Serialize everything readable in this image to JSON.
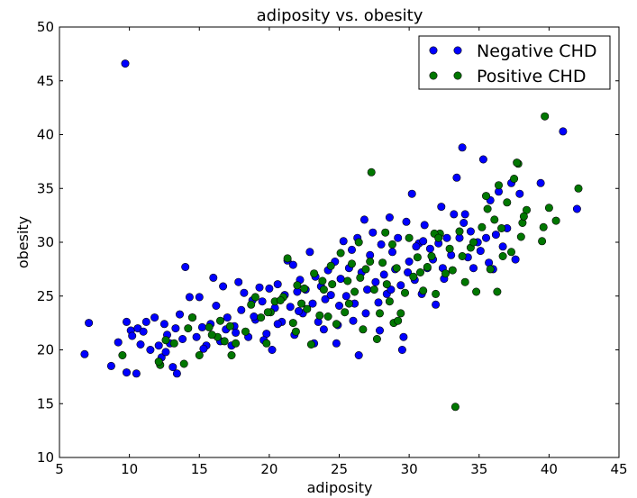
{
  "chart_data": {
    "type": "scatter",
    "title": "adiposity vs. obesity",
    "xlabel": "adiposity",
    "ylabel": "obesity",
    "xlim": [
      5,
      45
    ],
    "ylim": [
      10,
      50
    ],
    "xticks": [
      5,
      10,
      15,
      20,
      25,
      30,
      35,
      40,
      45
    ],
    "yticks": [
      10,
      15,
      20,
      25,
      30,
      35,
      40,
      45,
      50
    ],
    "grid": false,
    "legend_position": "top-right",
    "series": [
      {
        "name": "Negative CHD",
        "color": "#0000ff",
        "points": [
          [
            6.8,
            19.6
          ],
          [
            7.1,
            22.5
          ],
          [
            8.7,
            18.5
          ],
          [
            9.2,
            20.7
          ],
          [
            9.7,
            46.6
          ],
          [
            9.8,
            22.6
          ],
          [
            9.8,
            17.9
          ],
          [
            10.1,
            21.8
          ],
          [
            10.2,
            21.3
          ],
          [
            10.5,
            17.8
          ],
          [
            10.6,
            22.0
          ],
          [
            10.8,
            20.5
          ],
          [
            11.0,
            21.7
          ],
          [
            11.2,
            22.6
          ],
          [
            11.5,
            20.0
          ],
          [
            11.8,
            23.0
          ],
          [
            12.1,
            20.4
          ],
          [
            12.3,
            19.3
          ],
          [
            12.5,
            22.4
          ],
          [
            12.7,
            21.4
          ],
          [
            12.9,
            20.6
          ],
          [
            13.1,
            18.4
          ],
          [
            13.3,
            22.0
          ],
          [
            13.4,
            17.8
          ],
          [
            13.6,
            23.3
          ],
          [
            13.8,
            21.0
          ],
          [
            14.0,
            27.7
          ],
          [
            14.3,
            24.9
          ],
          [
            14.5,
            23.0
          ],
          [
            14.8,
            21.2
          ],
          [
            15.0,
            24.9
          ],
          [
            15.2,
            22.1
          ],
          [
            15.5,
            20.4
          ],
          [
            15.8,
            22.4
          ],
          [
            16.0,
            26.7
          ],
          [
            16.2,
            24.1
          ],
          [
            16.5,
            20.8
          ],
          [
            16.7,
            25.9
          ],
          [
            17.0,
            23.0
          ],
          [
            17.3,
            20.4
          ],
          [
            17.5,
            22.2
          ],
          [
            17.8,
            26.3
          ],
          [
            18.0,
            23.7
          ],
          [
            18.2,
            25.3
          ],
          [
            18.5,
            21.2
          ],
          [
            18.8,
            24.6
          ],
          [
            19.0,
            22.8
          ],
          [
            19.3,
            25.8
          ],
          [
            19.5,
            24.5
          ],
          [
            19.8,
            21.5
          ],
          [
            20.0,
            25.7
          ],
          [
            20.2,
            20.0
          ],
          [
            20.4,
            23.9
          ],
          [
            20.6,
            26.1
          ],
          [
            20.9,
            22.6
          ],
          [
            21.1,
            25.1
          ],
          [
            21.3,
            28.3
          ],
          [
            21.5,
            24.0
          ],
          [
            21.7,
            27.9
          ],
          [
            22.0,
            25.4
          ],
          [
            22.2,
            26.5
          ],
          [
            22.4,
            23.4
          ],
          [
            22.6,
            25.6
          ],
          [
            22.9,
            29.1
          ],
          [
            23.1,
            24.3
          ],
          [
            23.3,
            26.8
          ],
          [
            23.5,
            22.6
          ],
          [
            23.7,
            25.9
          ],
          [
            24.0,
            24.7
          ],
          [
            24.2,
            27.4
          ],
          [
            24.4,
            25.1
          ],
          [
            24.7,
            28.2
          ],
          [
            24.9,
            22.3
          ],
          [
            25.1,
            26.6
          ],
          [
            25.3,
            30.1
          ],
          [
            25.5,
            25.0
          ],
          [
            25.7,
            27.6
          ],
          [
            25.9,
            29.3
          ],
          [
            26.1,
            24.3
          ],
          [
            26.3,
            30.4
          ],
          [
            26.4,
            19.5
          ],
          [
            26.6,
            27.2
          ],
          [
            26.8,
            32.1
          ],
          [
            27.0,
            25.6
          ],
          [
            27.2,
            28.8
          ],
          [
            27.4,
            30.9
          ],
          [
            27.6,
            26.3
          ],
          [
            27.8,
            24.4
          ],
          [
            28.0,
            29.8
          ],
          [
            28.2,
            27.0
          ],
          [
            28.4,
            25.2
          ],
          [
            28.6,
            32.3
          ],
          [
            28.8,
            29.1
          ],
          [
            29.0,
            27.5
          ],
          [
            29.2,
            30.4
          ],
          [
            29.4,
            26.0
          ],
          [
            29.6,
            21.2
          ],
          [
            29.8,
            31.9
          ],
          [
            30.0,
            28.2
          ],
          [
            30.2,
            34.5
          ],
          [
            30.4,
            26.5
          ],
          [
            30.7,
            29.9
          ],
          [
            30.9,
            25.2
          ],
          [
            31.1,
            31.6
          ],
          [
            31.3,
            27.6
          ],
          [
            31.5,
            29.4
          ],
          [
            31.7,
            28.4
          ],
          [
            31.9,
            24.2
          ],
          [
            32.1,
            29.9
          ],
          [
            32.3,
            33.3
          ],
          [
            32.5,
            26.6
          ],
          [
            32.7,
            30.4
          ],
          [
            33.0,
            28.8
          ],
          [
            33.2,
            32.6
          ],
          [
            33.4,
            36.0
          ],
          [
            33.6,
            30.4
          ],
          [
            33.8,
            38.8
          ],
          [
            34.0,
            32.6
          ],
          [
            34.2,
            28.6
          ],
          [
            34.4,
            31.0
          ],
          [
            34.6,
            27.6
          ],
          [
            34.9,
            30.0
          ],
          [
            35.1,
            29.2
          ],
          [
            35.3,
            37.7
          ],
          [
            35.5,
            30.4
          ],
          [
            35.8,
            33.9
          ],
          [
            36.0,
            27.5
          ],
          [
            36.2,
            30.7
          ],
          [
            36.4,
            34.7
          ],
          [
            36.7,
            29.6
          ],
          [
            37.0,
            31.3
          ],
          [
            37.3,
            35.5
          ],
          [
            37.6,
            28.4
          ],
          [
            37.9,
            34.5
          ],
          [
            39.4,
            35.5
          ],
          [
            41.0,
            40.3
          ],
          [
            42.0,
            33.1
          ],
          [
            12.6,
            19.8
          ],
          [
            15.3,
            20.1
          ],
          [
            16.9,
            21.9
          ],
          [
            18.9,
            23.1
          ],
          [
            20.6,
            22.4
          ],
          [
            22.1,
            23.6
          ],
          [
            23.9,
            21.9
          ],
          [
            25.0,
            24.1
          ],
          [
            26.9,
            23.4
          ],
          [
            28.7,
            25.6
          ],
          [
            29.9,
            27.2
          ],
          [
            31.0,
            30.1
          ],
          [
            32.4,
            27.6
          ],
          [
            33.9,
            31.8
          ],
          [
            35.7,
            28.1
          ],
          [
            24.8,
            20.6
          ],
          [
            26.0,
            22.7
          ],
          [
            27.9,
            21.8
          ],
          [
            29.5,
            20.0
          ],
          [
            17.6,
            21.6
          ],
          [
            19.6,
            20.9
          ],
          [
            21.8,
            21.4
          ],
          [
            23.2,
            20.6
          ],
          [
            30.5,
            29.6
          ]
        ]
      },
      {
        "name": "Positive CHD",
        "color": "#007700",
        "points": [
          [
            9.5,
            19.5
          ],
          [
            12.2,
            18.6
          ],
          [
            12.6,
            20.9
          ],
          [
            13.2,
            20.6
          ],
          [
            13.9,
            18.7
          ],
          [
            14.5,
            23.0
          ],
          [
            15.0,
            19.5
          ],
          [
            15.7,
            22.1
          ],
          [
            16.3,
            21.2
          ],
          [
            16.5,
            22.7
          ],
          [
            17.2,
            22.2
          ],
          [
            17.3,
            19.5
          ],
          [
            17.6,
            20.6
          ],
          [
            18.3,
            21.7
          ],
          [
            19.0,
            24.9
          ],
          [
            19.4,
            23.0
          ],
          [
            19.8,
            20.6
          ],
          [
            20.1,
            23.5
          ],
          [
            20.4,
            24.5
          ],
          [
            21.0,
            24.9
          ],
          [
            21.3,
            28.5
          ],
          [
            21.7,
            22.5
          ],
          [
            22.0,
            26.0
          ],
          [
            22.3,
            24.3
          ],
          [
            22.7,
            23.8
          ],
          [
            23.0,
            20.5
          ],
          [
            23.2,
            27.1
          ],
          [
            23.6,
            23.2
          ],
          [
            23.9,
            25.6
          ],
          [
            24.2,
            23.1
          ],
          [
            24.5,
            26.1
          ],
          [
            24.8,
            22.4
          ],
          [
            25.1,
            29.0
          ],
          [
            25.4,
            23.5
          ],
          [
            25.6,
            26.4
          ],
          [
            25.9,
            28.0
          ],
          [
            26.1,
            25.4
          ],
          [
            26.4,
            30.0
          ],
          [
            26.7,
            21.9
          ],
          [
            26.9,
            27.5
          ],
          [
            27.3,
            36.5
          ],
          [
            27.5,
            25.6
          ],
          [
            27.7,
            21.0
          ],
          [
            27.9,
            23.4
          ],
          [
            28.1,
            28.1
          ],
          [
            28.4,
            26.1
          ],
          [
            28.6,
            24.5
          ],
          [
            28.9,
            22.5
          ],
          [
            29.1,
            27.6
          ],
          [
            29.4,
            23.4
          ],
          [
            29.7,
            25.3
          ],
          [
            30.0,
            30.4
          ],
          [
            30.3,
            26.8
          ],
          [
            30.6,
            28.6
          ],
          [
            31.0,
            25.5
          ],
          [
            31.3,
            27.7
          ],
          [
            31.6,
            28.7
          ],
          [
            31.9,
            25.2
          ],
          [
            32.2,
            30.8
          ],
          [
            32.6,
            27.1
          ],
          [
            32.9,
            29.4
          ],
          [
            33.3,
            14.7
          ],
          [
            33.6,
            31.0
          ],
          [
            34.0,
            26.3
          ],
          [
            34.4,
            29.5
          ],
          [
            34.8,
            25.4
          ],
          [
            35.2,
            31.4
          ],
          [
            35.5,
            34.3
          ],
          [
            35.8,
            27.5
          ],
          [
            36.1,
            32.1
          ],
          [
            36.4,
            35.3
          ],
          [
            36.7,
            28.7
          ],
          [
            37.0,
            33.7
          ],
          [
            37.3,
            29.1
          ],
          [
            37.5,
            35.9
          ],
          [
            37.8,
            37.3
          ],
          [
            38.1,
            31.8
          ],
          [
            38.4,
            33.0
          ],
          [
            39.5,
            30.1
          ],
          [
            39.7,
            41.7
          ],
          [
            40.0,
            33.2
          ],
          [
            40.5,
            32.0
          ],
          [
            42.1,
            35.0
          ],
          [
            15.9,
            21.4
          ],
          [
            18.7,
            24.2
          ],
          [
            20.8,
            24.6
          ],
          [
            22.5,
            25.7
          ],
          [
            24.4,
            27.8
          ],
          [
            26.5,
            26.7
          ],
          [
            27.2,
            28.2
          ],
          [
            28.8,
            29.8
          ],
          [
            30.8,
            27.2
          ],
          [
            33.1,
            27.4
          ],
          [
            34.6,
            30.0
          ],
          [
            36.6,
            31.3
          ],
          [
            38.0,
            30.5
          ],
          [
            39.6,
            31.4
          ],
          [
            37.7,
            37.4
          ],
          [
            35.6,
            33.1
          ],
          [
            29.2,
            22.7
          ],
          [
            31.8,
            30.8
          ],
          [
            25.7,
            24.3
          ],
          [
            19.9,
            23.5
          ],
          [
            16.8,
            20.8
          ],
          [
            14.2,
            22.0
          ],
          [
            12.1,
            18.9
          ],
          [
            21.9,
            21.7
          ],
          [
            23.8,
            26.4
          ],
          [
            28.3,
            30.9
          ],
          [
            32.1,
            30.4
          ],
          [
            33.8,
            28.7
          ],
          [
            36.3,
            25.4
          ],
          [
            38.2,
            32.4
          ]
        ]
      }
    ]
  }
}
